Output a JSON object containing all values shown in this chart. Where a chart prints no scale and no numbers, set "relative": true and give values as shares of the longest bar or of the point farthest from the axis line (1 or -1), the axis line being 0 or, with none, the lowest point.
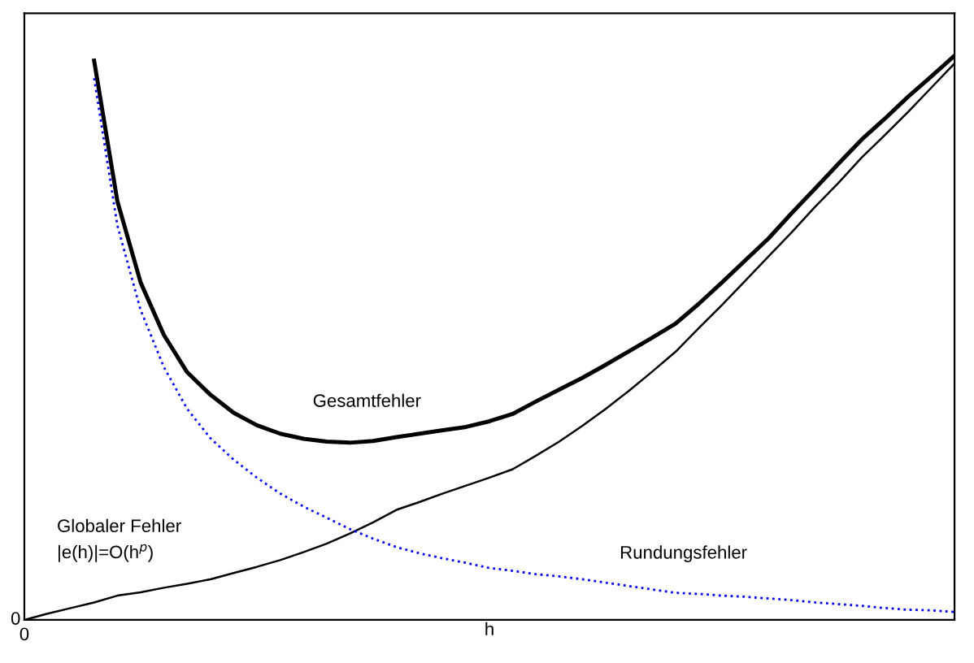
{
  "chart_data": {
    "type": "line",
    "relative": true,
    "xlabel": "h",
    "legend": false,
    "marker": "none",
    "categories": [
      null,
      null,
      null,
      null,
      null,
      null,
      null,
      null,
      null,
      null,
      null,
      null,
      null,
      null,
      null,
      null,
      null,
      null,
      null,
      null,
      null,
      null,
      null,
      null,
      null,
      null,
      null,
      null,
      null,
      null,
      null,
      null,
      null,
      null,
      null,
      null,
      null,
      null,
      null,
      null,
      null
    ],
    "annotations": [
      "0",
      "0"
    ],
    "series": [
      {
        "name": "Gesamtfehler",
        "color": "#000000",
        "line_style": "solid",
        "values": [
          null,
          null,
          null,
          0.991,
          0.742,
          0.598,
          0.505,
          0.439,
          0.399,
          0.367,
          0.345,
          0.33,
          0.321,
          0.316,
          0.314,
          0.317,
          0.324,
          0.33,
          0.336,
          0.342,
          0.352,
          0.365,
          0.387,
          0.408,
          0.429,
          0.452,
          0.476,
          0.5,
          0.525,
          0.56,
          0.598,
          0.637,
          0.676,
          0.721,
          0.764,
          0.808,
          0.851,
          0.888,
          0.927,
          0.963,
          1
        ]
      },
      {
        "name": "Globaler Fehler\n|e(h)|=O(h$^{p}$)",
        "color": "#000000",
        "line_style": "solid",
        "values": [
          0,
          0.011,
          0.021,
          0.031,
          0.043,
          0.049,
          0.057,
          0.064,
          0.072,
          0.083,
          0.094,
          0.106,
          0.12,
          0.135,
          0.153,
          0.173,
          0.195,
          0.209,
          0.224,
          0.238,
          0.252,
          0.267,
          0.291,
          0.316,
          0.344,
          0.374,
          0.406,
          0.44,
          0.475,
          0.517,
          0.558,
          0.601,
          0.644,
          0.687,
          0.732,
          0.774,
          0.819,
          0.859,
          0.9,
          0.943,
          0.986
        ]
      },
      {
        "name": "Rundungsfehler",
        "color": "#0000ff",
        "line_style": "dotted",
        "values": [
          null,
          null,
          null,
          0.96,
          0.699,
          0.549,
          0.448,
          0.374,
          0.322,
          0.284,
          0.252,
          0.224,
          0.201,
          0.181,
          0.161,
          0.144,
          0.129,
          0.118,
          0.109,
          0.101,
          0.092,
          0.087,
          0.081,
          0.077,
          0.072,
          0.066,
          0.06,
          0.054,
          0.048,
          0.046,
          0.043,
          0.041,
          0.038,
          0.035,
          0.031,
          0.028,
          0.025,
          0.021,
          0.018,
          0.017,
          0.014
        ]
      }
    ]
  }
}
